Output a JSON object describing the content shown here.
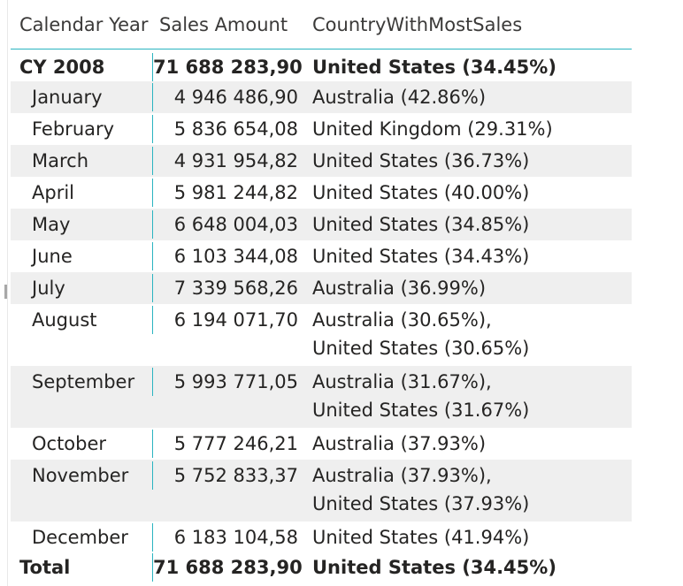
{
  "headers": {
    "calendar_year": "Calendar Year",
    "sales_amount": "Sales Amount",
    "country": "CountryWithMostSales"
  },
  "year_row": {
    "label": "CY 2008",
    "sales": "71 688 283,90",
    "country": "United States (34.45%)"
  },
  "rows": [
    {
      "month": "January",
      "sales": "4 946 486,90",
      "country": [
        "Australia (42.86%)"
      ]
    },
    {
      "month": "February",
      "sales": "5 836 654,08",
      "country": [
        "United Kingdom (29.31%)"
      ]
    },
    {
      "month": "March",
      "sales": "4 931 954,82",
      "country": [
        "United States (36.73%)"
      ]
    },
    {
      "month": "April",
      "sales": "5 981 244,82",
      "country": [
        "United States (40.00%)"
      ]
    },
    {
      "month": "May",
      "sales": "6 648 004,03",
      "country": [
        "United States (34.85%)"
      ]
    },
    {
      "month": "June",
      "sales": "6 103 344,08",
      "country": [
        "United States (34.43%)"
      ]
    },
    {
      "month": "July",
      "sales": "7 339 568,26",
      "country": [
        "Australia (36.99%)"
      ]
    },
    {
      "month": "August",
      "sales": "6 194 071,70",
      "country": [
        "Australia (30.65%),",
        "United States (30.65%)"
      ]
    },
    {
      "month": "September",
      "sales": "5 993 771,05",
      "country": [
        "Australia (31.67%),",
        "United States (31.67%)"
      ]
    },
    {
      "month": "October",
      "sales": "5 777 246,21",
      "country": [
        "Australia (37.93%)"
      ]
    },
    {
      "month": "November",
      "sales": "5 752 833,37",
      "country": [
        "Australia (37.93%),",
        "United States (37.93%)"
      ]
    },
    {
      "month": "December",
      "sales": "6 183 104,58",
      "country": [
        "United States (41.94%)"
      ]
    }
  ],
  "total_row": {
    "label": "Total",
    "sales": "71 688 283,90",
    "country": "United States (34.45%)"
  },
  "colors": {
    "accent": "#2ab4c0",
    "alt_row": "#efefef",
    "text": "#252423"
  }
}
